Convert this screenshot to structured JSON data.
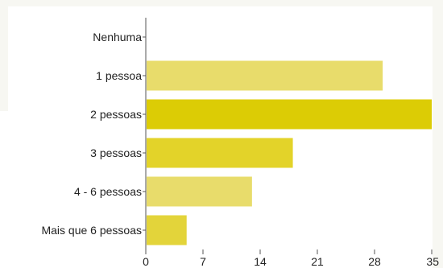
{
  "chart_data": {
    "type": "bar",
    "orientation": "horizontal",
    "categories": [
      "Nenhuma",
      "1 pessoa",
      "2 pessoas",
      "3 pessoas",
      "4 - 6 pessoas",
      "Mais que 6 pessoas"
    ],
    "values": [
      0,
      29,
      35,
      18,
      13,
      5
    ],
    "colors": [
      "#e8dc6b",
      "#e8dc6b",
      "#dccc05",
      "#e3d329",
      "#e8dc6b",
      "#e3d43a"
    ],
    "xticks": [
      "0",
      "7",
      "14",
      "21",
      "28",
      "35"
    ],
    "xlim": [
      0,
      35
    ],
    "grid": false,
    "axis_color": "#555555",
    "text_color": "#222222"
  }
}
